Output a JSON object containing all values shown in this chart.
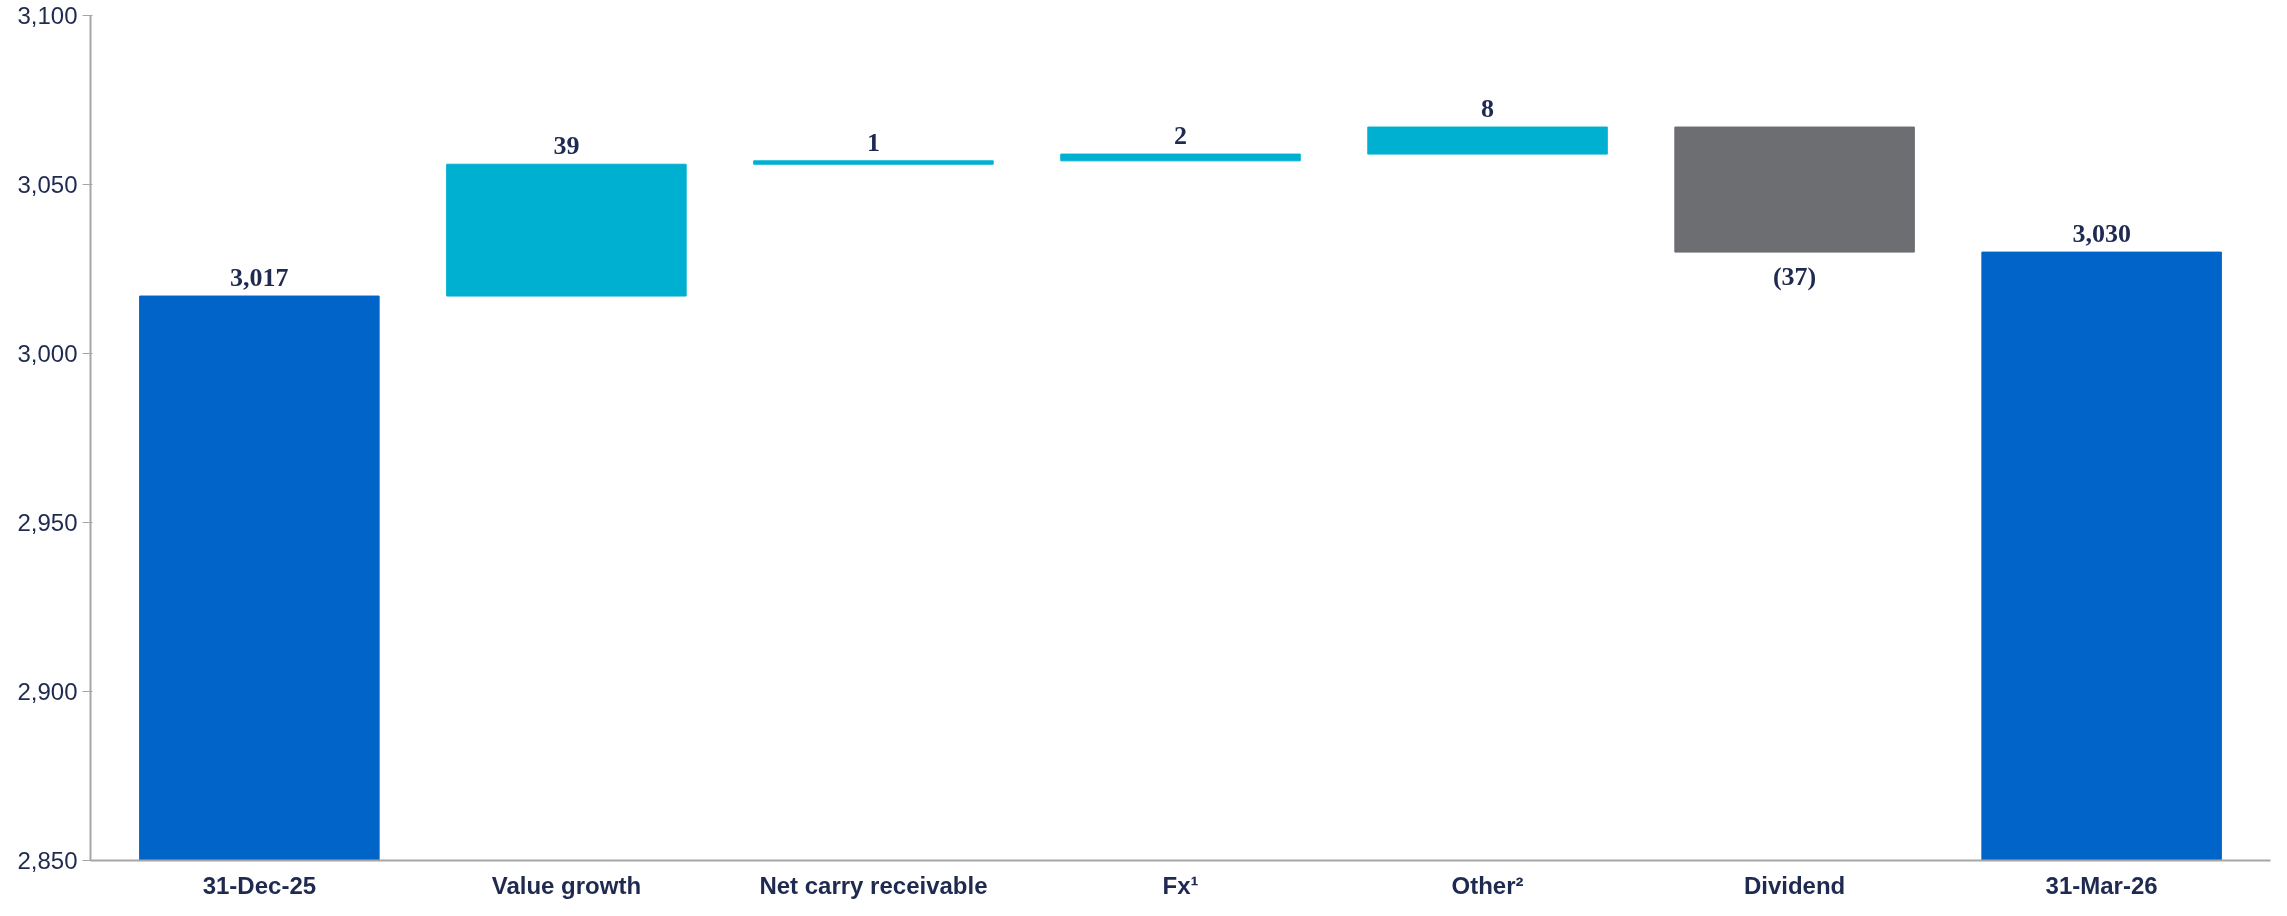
{
  "chart_data": {
    "type": "bar",
    "categories": [
      "31-Dec-25",
      "Value growth",
      "Net carry receivable",
      "Fx¹",
      "Other²",
      "Dividend",
      "31-Mar-26"
    ],
    "values": [
      3017,
      39,
      1,
      2,
      8,
      -37,
      3030
    ],
    "base": [
      null,
      3017,
      3056,
      3057,
      3059,
      3067,
      null
    ],
    "colors": [
      "#0064c8",
      "#00b0d0",
      "#00b0d0",
      "#00b0d0",
      "#00b0d0",
      "#6d6e71",
      "#0064c8"
    ],
    "value_labels": [
      "3,017",
      "39",
      "1",
      "2",
      "8",
      "(37)",
      "3,030"
    ],
    "ylim": [
      2850,
      3100
    ],
    "yticks": [
      {
        "value": 2850,
        "label": "2,850"
      },
      {
        "value": 2900,
        "label": "2,900"
      },
      {
        "value": 2950,
        "label": "2,950"
      },
      {
        "value": 3000,
        "label": "3,000"
      },
      {
        "value": 3050,
        "label": "3,050"
      },
      {
        "value": 3100,
        "label": "3,100"
      }
    ],
    "grid": false
  }
}
